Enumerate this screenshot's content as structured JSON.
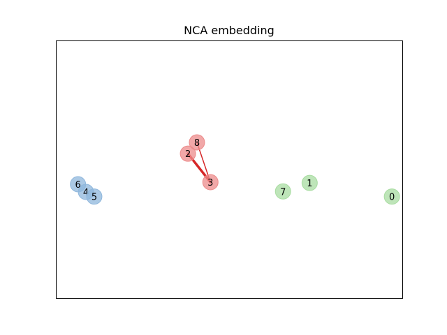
{
  "chart_data": {
    "type": "scatter",
    "title": "NCA embedding",
    "xlabel": "",
    "ylabel": "",
    "axes_ticks": false,
    "grid": false,
    "legend": "none",
    "xlim": [
      0,
      100
    ],
    "ylim": [
      0,
      100
    ],
    "points": [
      {
        "label": "0",
        "x": 97.0,
        "y": 39.5,
        "group": "green"
      },
      {
        "label": "1",
        "x": 73.2,
        "y": 44.8,
        "group": "green"
      },
      {
        "label": "2",
        "x": 38.0,
        "y": 56.2,
        "group": "red"
      },
      {
        "label": "3",
        "x": 44.5,
        "y": 45.1,
        "group": "red"
      },
      {
        "label": "4",
        "x": 8.5,
        "y": 41.3,
        "group": "blue"
      },
      {
        "label": "5",
        "x": 10.9,
        "y": 39.5,
        "group": "blue"
      },
      {
        "label": "6",
        "x": 6.2,
        "y": 44.3,
        "group": "blue"
      },
      {
        "label": "7",
        "x": 65.5,
        "y": 41.5,
        "group": "green"
      },
      {
        "label": "8",
        "x": 40.6,
        "y": 60.6,
        "group": "red"
      }
    ],
    "links": [
      {
        "from": "3",
        "to": "2",
        "weight": 3.5
      },
      {
        "from": "3",
        "to": "8",
        "weight": 1.5
      }
    ],
    "colors": {
      "blue": "#8fb7dc",
      "red": "#ec8b8b",
      "green": "#a8dca1",
      "link": "#d62728"
    }
  }
}
